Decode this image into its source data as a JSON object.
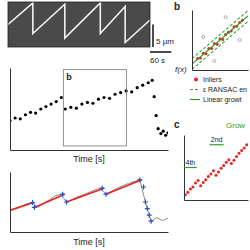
{
  "chart_data": [
    {
      "type": "kymograph",
      "xlim": [
        0,
        400
      ],
      "ylim": [
        0,
        10
      ],
      "tick_labels": false,
      "x": [
        0,
        70,
        70,
        160,
        160,
        260,
        260,
        330,
        330,
        400
      ],
      "series": [
        {
          "color": "#f2f2f2",
          "values": [
            5,
            9.8,
            3,
            9.5,
            2,
            9.8,
            3,
            9.0,
            1,
            6
          ]
        }
      ],
      "scale_bars": [
        {
          "label": "5 µm",
          "value": 5,
          "axis": "y"
        },
        {
          "label": "60 s",
          "value": 60,
          "axis": "x"
        }
      ]
    },
    {
      "type": "scatter",
      "xlabel": "Time [s]",
      "xlim": [
        0,
        400
      ],
      "ylim": [
        0,
        10
      ],
      "tick_labels": false,
      "color": "#000000",
      "x": [
        0,
        13,
        26,
        39,
        52,
        65,
        78,
        91,
        104,
        117,
        130,
        140,
        154,
        168,
        182,
        196,
        210,
        224,
        238,
        252,
        266,
        280,
        294,
        308,
        322,
        336,
        350,
        360,
        365,
        370,
        375,
        382,
        388,
        394,
        400
      ],
      "values": [
        3.6,
        3.9,
        3.8,
        4.3,
        4.6,
        4.5,
        5.0,
        5.3,
        5.6,
        5.9,
        6.4,
        5.0,
        5.2,
        5.1,
        5.6,
        5.8,
        5.7,
        6.2,
        6.4,
        6.3,
        6.8,
        7.0,
        7.2,
        7.1,
        7.6,
        7.9,
        8.2,
        8.5,
        6.5,
        4.2,
        2.6,
        2.0,
        2.3,
        1.8,
        2.1
      ],
      "inset": {
        "label": "b",
        "xlim": [
          135,
          295
        ],
        "ylim": [
          0.5,
          9.8
        ]
      }
    },
    {
      "type": "line",
      "xlabel": "Time [s]",
      "xlim": [
        0,
        420
      ],
      "ylim": [
        0,
        10
      ],
      "tick_labels": false,
      "series": [
        {
          "type": "line",
          "color": "#8c8c8c",
          "x": [
            0,
            15,
            30,
            45,
            60,
            75,
            90,
            105,
            120,
            135,
            150,
            165,
            180,
            195,
            210,
            225,
            240,
            255,
            270,
            285,
            300,
            315,
            330,
            345,
            360,
            375,
            390,
            405,
            420
          ],
          "values": [
            3.6,
            4.0,
            4.3,
            4.7,
            4.9,
            4.1,
            4.8,
            5.4,
            6.0,
            6.3,
            5.0,
            5.4,
            5.9,
            6.2,
            6.6,
            7.0,
            7.3,
            6.3,
            6.8,
            7.3,
            7.7,
            8.1,
            8.4,
            8.7,
            5.0,
            1.8,
            2.4,
            1.9,
            2.3
          ]
        },
        {
          "type": "line",
          "color": "#e8251f",
          "x": [
            0,
            62,
            63,
            65,
            145,
            147,
            150,
            250,
            252,
            255,
            350
          ],
          "values": [
            3.6,
            4.9,
            null,
            4.1,
            6.3,
            null,
            5.0,
            7.3,
            null,
            6.3,
            8.7
          ]
        },
        {
          "type": "scatter",
          "marker": "plus",
          "color": "#2a52be",
          "x": [
            60,
            65,
            140,
            150,
            245,
            255,
            345,
            355,
            360,
            365,
            370,
            375
          ],
          "values": [
            4.9,
            4.1,
            6.3,
            5.0,
            7.3,
            6.3,
            8.7,
            7.5,
            5.0,
            3.9,
            2.8,
            1.8
          ]
        }
      ]
    },
    {
      "type": "scatter",
      "panel_label": "b",
      "ylabel": "f(x)",
      "xlim": [
        0,
        10
      ],
      "ylim": [
        0,
        10
      ],
      "tick_labels": false,
      "legend": "bottom right",
      "series": [
        {
          "name": "Inliers",
          "type": "scatter",
          "marker": "circle",
          "color": "#e8251f",
          "x": [
            1,
            1.5,
            2,
            2.5,
            3,
            3.5,
            4,
            4.5,
            5,
            5.5,
            6,
            6.5,
            7,
            7.5,
            8,
            8.5,
            9
          ],
          "values": [
            1.9,
            2.0,
            2.8,
            2.7,
            3.6,
            3.6,
            4.4,
            4.3,
            5.2,
            5.1,
            5.9,
            6.3,
            6.5,
            7.2,
            7.3,
            7.9,
            8.3
          ]
        },
        {
          "type": "scatter",
          "marker": "open-circle",
          "color": "#9a9a9a",
          "x": [
            2,
            4,
            6,
            8.5
          ],
          "values": [
            5.5,
            1.5,
            8.8,
            5.0
          ]
        },
        {
          "name": "ε RANSAC en",
          "type": "line",
          "line_style": "dashed",
          "color": "#2ca02c",
          "x": [
            0,
            10
          ],
          "values": [
            1.9,
            9.9
          ]
        },
        {
          "type": "line",
          "line_style": "dashed",
          "color": "#2ca02c",
          "x": [
            0,
            10
          ],
          "values": [
            0.1,
            8.1
          ]
        },
        {
          "name": "Linear growt",
          "type": "line",
          "line_style": "solid",
          "color": "#2ca02c",
          "x": [
            0,
            10
          ],
          "values": [
            1,
            9
          ]
        }
      ]
    },
    {
      "type": "scatter",
      "panel_label": "c",
      "title": "Grow",
      "xlim": [
        0,
        100
      ],
      "ylim": [
        0,
        10
      ],
      "tick_labels": false,
      "series": [
        {
          "type": "scatter",
          "marker": "circle",
          "color": "#e8251f",
          "x": [
            2,
            6,
            10,
            14,
            18,
            22,
            26,
            30,
            34,
            38,
            42,
            46,
            50,
            54,
            58,
            62,
            66,
            70,
            74,
            78,
            82,
            86,
            90,
            94,
            98
          ],
          "values": [
            0.8,
            1.2,
            1.7,
            2.0,
            2.6,
            3.0,
            2.2,
            2.7,
            3.1,
            3.6,
            4.0,
            4.5,
            3.8,
            4.3,
            4.9,
            5.3,
            5.8,
            6.2,
            5.6,
            6.1,
            6.7,
            7.2,
            7.6,
            8.0,
            8.5
          ]
        }
      ],
      "annotations": [
        {
          "text": "2nd",
          "x": [
            40,
            62
          ],
          "y": 8.5
        },
        {
          "text": "4th",
          "x": [
            0,
            20
          ],
          "y": 5.0
        }
      ]
    }
  ]
}
